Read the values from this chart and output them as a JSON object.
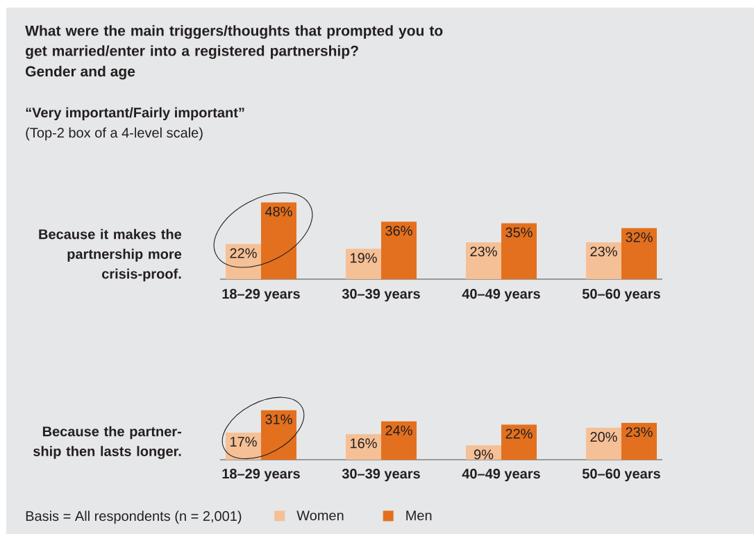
{
  "chart_data": [
    {
      "type": "bar",
      "title": "What were the main triggers/thoughts that prompted you to get married/enter into a registered partnership?",
      "subtitle": "Gender and age",
      "annotations": [
        "“Very important/Fairly important”",
        "(Top-2 box of a 4-level scale)"
      ],
      "ylabel": "Because it makes the partnership more crisis-proof.",
      "categories": [
        "18–29 years",
        "30–39 years",
        "40–49 years",
        "50–60 years"
      ],
      "series": [
        {
          "color": "#f5c096",
          "values": [
            22,
            19,
            23,
            23
          ],
          "value_labels": [
            "22%",
            "19%",
            "23%",
            "23%"
          ]
        },
        {
          "color": "#e3701e",
          "values": [
            48,
            36,
            35,
            32
          ],
          "value_labels": [
            "48%",
            "36%",
            "35%",
            "32%"
          ]
        }
      ]
    },
    {
      "type": "bar",
      "ylabel": "Because the partner-ship then lasts longer.",
      "categories": [
        "18–29 years",
        "30–39 years",
        "40–49 years",
        "50–60 years"
      ],
      "series": [
        {
          "name": "Women",
          "color": "#f5c096",
          "values": [
            17,
            16,
            9,
            20
          ],
          "value_labels": [
            "17%",
            "16%",
            "9%",
            "20%"
          ]
        },
        {
          "name": "Men",
          "color": "#e3701e",
          "values": [
            31,
            24,
            22,
            23
          ],
          "value_labels": [
            "31%",
            "24%",
            "22%",
            "23%"
          ]
        }
      ],
      "legend": "bottom",
      "annotations": [
        "Basis = All respondents (n = 2,001)"
      ]
    }
  ]
}
